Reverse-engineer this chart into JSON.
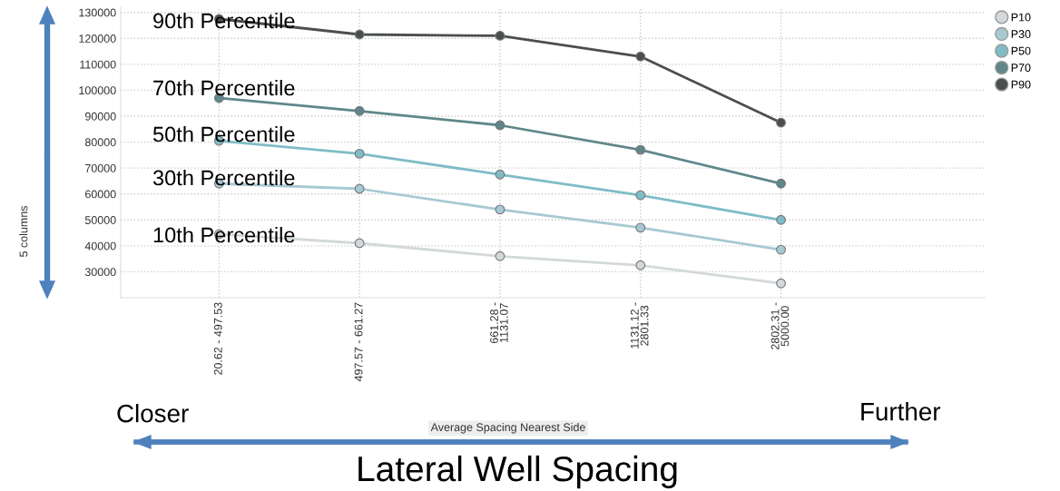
{
  "chart_data": {
    "type": "line",
    "xlabel": "Average Spacing Nearest Side",
    "categories": [
      "20.62 - 497.53",
      "497.57 - 661.27",
      "661.28 -\n1131.07",
      "1131.12 -\n2801.33",
      "2802.31 -\n5000.00"
    ],
    "series": [
      {
        "name": "P10",
        "color": "#d3d8da",
        "values": [
          44500,
          41000,
          36000,
          32500,
          25500
        ]
      },
      {
        "name": "P30",
        "color": "#a6c9d2",
        "values": [
          64000,
          62000,
          54000,
          47000,
          38500
        ]
      },
      {
        "name": "P50",
        "color": "#7fbcc6",
        "values": [
          80500,
          75500,
          67500,
          59500,
          50000
        ]
      },
      {
        "name": "P70",
        "color": "#5f878b",
        "values": [
          97000,
          92000,
          86500,
          77000,
          64000
        ]
      },
      {
        "name": "P90",
        "color": "#4a4e4f",
        "values": [
          127500,
          121500,
          121000,
          113000,
          87500
        ]
      }
    ],
    "ylim": [
      20000,
      132000
    ],
    "yticks": [
      30000,
      40000,
      50000,
      60000,
      70000,
      80000,
      90000,
      100000,
      110000,
      120000,
      130000
    ],
    "grid": true,
    "legend": "top right",
    "marker": "circle",
    "line_style": "solid",
    "annotations": [
      "90th Percentile",
      "70th Percentile",
      "50th Percentile",
      "30th Percentile",
      "10th Percentile",
      "5 columns",
      "Closer",
      "Further",
      "Lateral Well Spacing"
    ]
  }
}
